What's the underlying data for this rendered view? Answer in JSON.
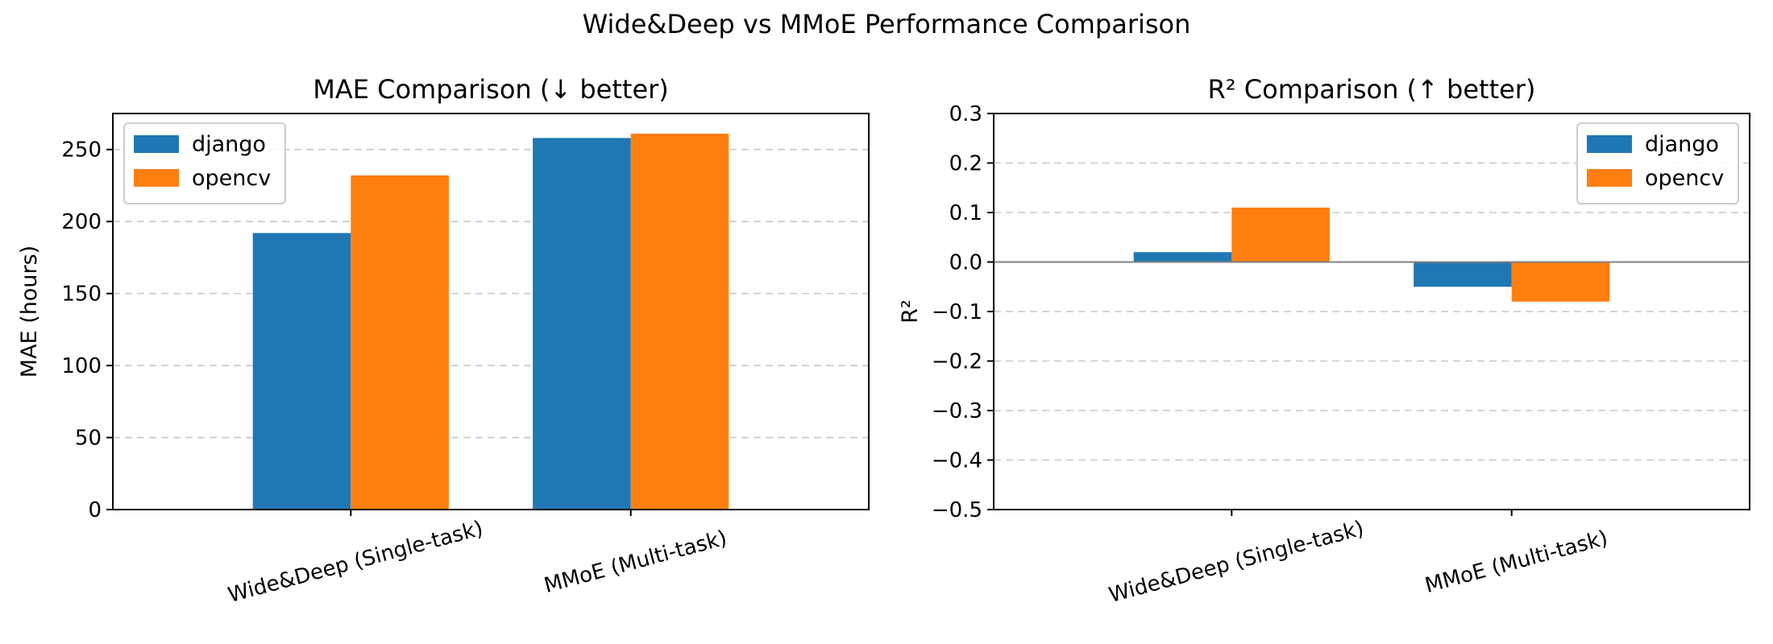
{
  "suptitle": "Wide&Deep vs MMoE Performance Comparison",
  "colors": {
    "django": "#1f77b4",
    "opencv": "#ff7f0e"
  },
  "chart_data": [
    {
      "type": "bar",
      "title": "MAE Comparison (↓ better)",
      "xlabel": "",
      "ylabel": "MAE (hours)",
      "categories": [
        "Wide&Deep (Single-task)",
        "MMoE (Multi-task)"
      ],
      "series": [
        {
          "name": "django",
          "values": [
            192,
            258
          ]
        },
        {
          "name": "opencv",
          "values": [
            232,
            261
          ]
        }
      ],
      "ylim": [
        0,
        275
      ],
      "yticks": [
        0,
        50,
        100,
        150,
        200,
        250
      ],
      "ytick_labels": [
        "0",
        "50",
        "100",
        "150",
        "200",
        "250"
      ],
      "grid": "y",
      "legend": "upper-left"
    },
    {
      "type": "bar",
      "title": "R² Comparison (↑ better)",
      "xlabel": "",
      "ylabel": "R²",
      "categories": [
        "Wide&Deep (Single-task)",
        "MMoE (Multi-task)"
      ],
      "series": [
        {
          "name": "django",
          "values": [
            0.02,
            -0.05
          ]
        },
        {
          "name": "opencv",
          "values": [
            0.11,
            -0.08
          ]
        }
      ],
      "ylim": [
        -0.5,
        0.3
      ],
      "yticks": [
        -0.5,
        -0.4,
        -0.3,
        -0.2,
        -0.1,
        0.0,
        0.1,
        0.2,
        0.3
      ],
      "ytick_labels": [
        "−0.5",
        "−0.4",
        "−0.3",
        "−0.2",
        "−0.1",
        "0.0",
        "0.1",
        "0.2",
        "0.3"
      ],
      "grid": "y",
      "legend": "upper-right"
    }
  ]
}
